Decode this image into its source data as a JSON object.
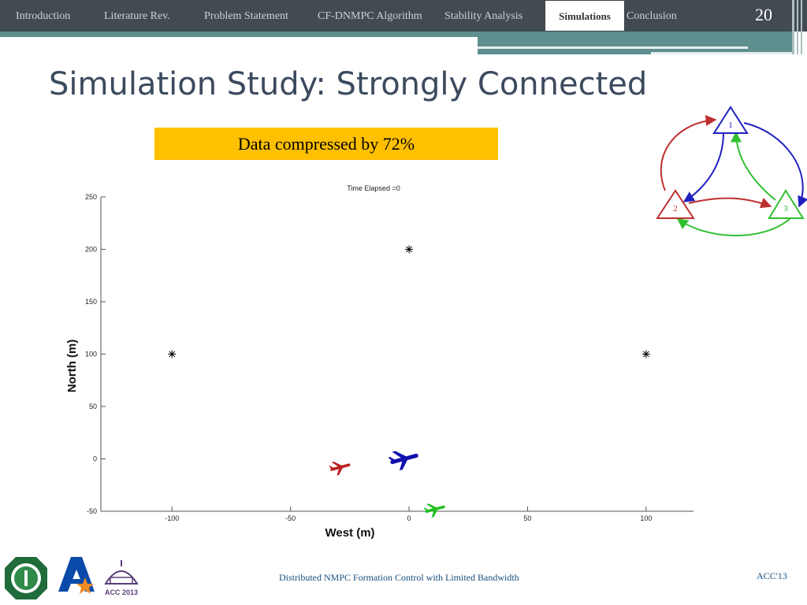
{
  "nav": {
    "items": [
      "Introduction",
      "Literature Rev.",
      "Problem Statement",
      "CF-DNMPC Algorithm",
      "Stability Analysis",
      "Simulations",
      "Conclusion"
    ],
    "active": "Simulations",
    "page_number": "20"
  },
  "title": "Simulation Study: Strongly Connected",
  "banner": "Data compressed by 72%",
  "graph": {
    "nodes": [
      "1",
      "2",
      "3"
    ],
    "colors": {
      "node1": "#2020c0",
      "node2": "#c03030",
      "node3": "#30c030"
    }
  },
  "chart_data": {
    "type": "scatter",
    "title": "Time Elapsed =0",
    "xlabel": "West (m)",
    "ylabel": "North (m)",
    "xlim": [
      -130,
      120
    ],
    "ylim": [
      -50,
      250
    ],
    "xticks": [
      -100,
      -50,
      0,
      50,
      100
    ],
    "yticks": [
      -50,
      0,
      50,
      100,
      150,
      200,
      250
    ],
    "grid": false,
    "series": [
      {
        "marker": "star",
        "color": "#000000",
        "points": [
          [
            -100,
            100
          ],
          [
            0,
            200
          ],
          [
            100,
            100
          ]
        ]
      },
      {
        "marker": "aircraft",
        "color": "#c02020",
        "points": [
          [
            -29,
            -8
          ]
        ]
      },
      {
        "marker": "aircraft",
        "color": "#1010b0",
        "points": [
          [
            -2,
            0
          ]
        ]
      },
      {
        "marker": "aircraft",
        "color": "#20c020",
        "points": [
          [
            11,
            -48
          ]
        ]
      }
    ]
  },
  "footer": {
    "text": "Distributed NMPC Formation Control with Limited Bandwidth",
    "right": "ACC'13"
  },
  "logos": {
    "acc_text": "ACC 2013"
  }
}
